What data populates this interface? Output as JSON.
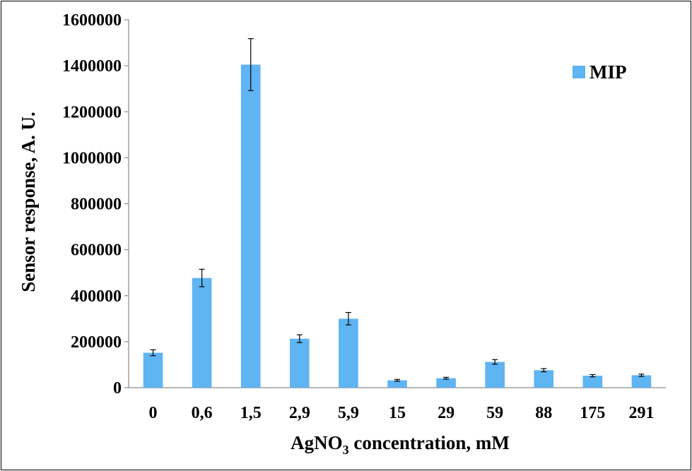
{
  "chart_data": {
    "type": "bar",
    "categories": [
      "0",
      "0,6",
      "1,5",
      "2,9",
      "5,9",
      "15",
      "29",
      "59",
      "88",
      "175",
      "291"
    ],
    "series": [
      {
        "name": "MIP",
        "values": [
          152000,
          477000,
          1405000,
          213000,
          300000,
          32000,
          41000,
          112000,
          76000,
          52000,
          54000
        ],
        "errors": [
          13000,
          38000,
          113000,
          17000,
          27000,
          4000,
          4000,
          10000,
          7000,
          5000,
          5000
        ]
      }
    ],
    "xlabel_parts": {
      "pre": "AgNO",
      "sub": "3",
      "post": " concentration, mM"
    },
    "ylabel": "Sensor response, A. U.",
    "ylim": [
      0,
      1600000
    ],
    "yticks": [
      "0",
      "200000",
      "400000",
      "600000",
      "800000",
      "1000000",
      "1200000",
      "1400000",
      "1600000"
    ],
    "grid": false,
    "legend_position": "top-right",
    "colors": {
      "bar": "#5fb4f2",
      "axis": "#8a8a8a",
      "error": "#000000"
    }
  }
}
